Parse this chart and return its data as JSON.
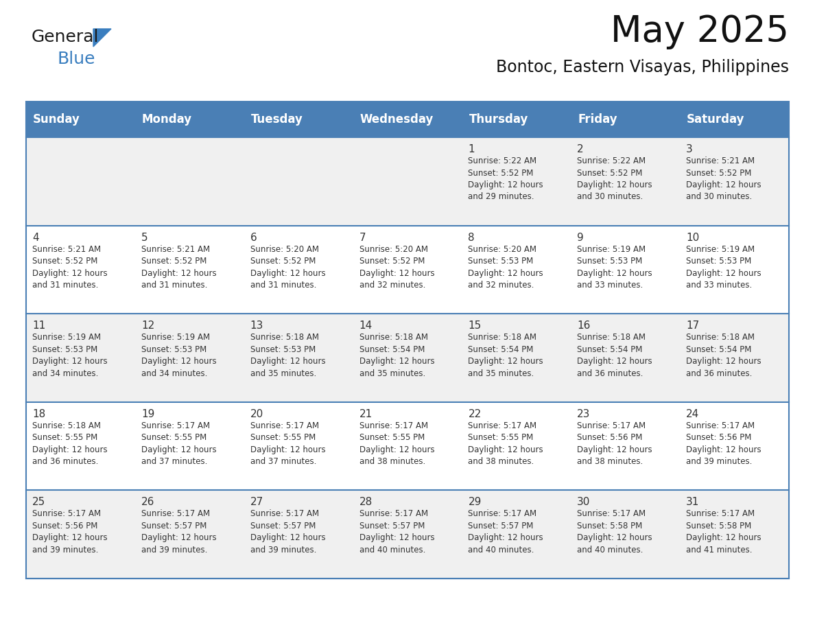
{
  "title": "May 2025",
  "subtitle": "Bontoc, Eastern Visayas, Philippines",
  "days_of_week": [
    "Sunday",
    "Monday",
    "Tuesday",
    "Wednesday",
    "Thursday",
    "Friday",
    "Saturday"
  ],
  "header_bg": "#4a7fb5",
  "header_text": "#ffffff",
  "row_bg_odd": "#f0f0f0",
  "row_bg_even": "#ffffff",
  "line_color": "#4a7fb5",
  "text_color": "#333333",
  "cell_data": [
    [
      "",
      "",
      "",
      "",
      "1\nSunrise: 5:22 AM\nSunset: 5:52 PM\nDaylight: 12 hours\nand 29 minutes.",
      "2\nSunrise: 5:22 AM\nSunset: 5:52 PM\nDaylight: 12 hours\nand 30 minutes.",
      "3\nSunrise: 5:21 AM\nSunset: 5:52 PM\nDaylight: 12 hours\nand 30 minutes."
    ],
    [
      "4\nSunrise: 5:21 AM\nSunset: 5:52 PM\nDaylight: 12 hours\nand 31 minutes.",
      "5\nSunrise: 5:21 AM\nSunset: 5:52 PM\nDaylight: 12 hours\nand 31 minutes.",
      "6\nSunrise: 5:20 AM\nSunset: 5:52 PM\nDaylight: 12 hours\nand 31 minutes.",
      "7\nSunrise: 5:20 AM\nSunset: 5:52 PM\nDaylight: 12 hours\nand 32 minutes.",
      "8\nSunrise: 5:20 AM\nSunset: 5:53 PM\nDaylight: 12 hours\nand 32 minutes.",
      "9\nSunrise: 5:19 AM\nSunset: 5:53 PM\nDaylight: 12 hours\nand 33 minutes.",
      "10\nSunrise: 5:19 AM\nSunset: 5:53 PM\nDaylight: 12 hours\nand 33 minutes."
    ],
    [
      "11\nSunrise: 5:19 AM\nSunset: 5:53 PM\nDaylight: 12 hours\nand 34 minutes.",
      "12\nSunrise: 5:19 AM\nSunset: 5:53 PM\nDaylight: 12 hours\nand 34 minutes.",
      "13\nSunrise: 5:18 AM\nSunset: 5:53 PM\nDaylight: 12 hours\nand 35 minutes.",
      "14\nSunrise: 5:18 AM\nSunset: 5:54 PM\nDaylight: 12 hours\nand 35 minutes.",
      "15\nSunrise: 5:18 AM\nSunset: 5:54 PM\nDaylight: 12 hours\nand 35 minutes.",
      "16\nSunrise: 5:18 AM\nSunset: 5:54 PM\nDaylight: 12 hours\nand 36 minutes.",
      "17\nSunrise: 5:18 AM\nSunset: 5:54 PM\nDaylight: 12 hours\nand 36 minutes."
    ],
    [
      "18\nSunrise: 5:18 AM\nSunset: 5:55 PM\nDaylight: 12 hours\nand 36 minutes.",
      "19\nSunrise: 5:17 AM\nSunset: 5:55 PM\nDaylight: 12 hours\nand 37 minutes.",
      "20\nSunrise: 5:17 AM\nSunset: 5:55 PM\nDaylight: 12 hours\nand 37 minutes.",
      "21\nSunrise: 5:17 AM\nSunset: 5:55 PM\nDaylight: 12 hours\nand 38 minutes.",
      "22\nSunrise: 5:17 AM\nSunset: 5:55 PM\nDaylight: 12 hours\nand 38 minutes.",
      "23\nSunrise: 5:17 AM\nSunset: 5:56 PM\nDaylight: 12 hours\nand 38 minutes.",
      "24\nSunrise: 5:17 AM\nSunset: 5:56 PM\nDaylight: 12 hours\nand 39 minutes."
    ],
    [
      "25\nSunrise: 5:17 AM\nSunset: 5:56 PM\nDaylight: 12 hours\nand 39 minutes.",
      "26\nSunrise: 5:17 AM\nSunset: 5:57 PM\nDaylight: 12 hours\nand 39 minutes.",
      "27\nSunrise: 5:17 AM\nSunset: 5:57 PM\nDaylight: 12 hours\nand 39 minutes.",
      "28\nSunrise: 5:17 AM\nSunset: 5:57 PM\nDaylight: 12 hours\nand 40 minutes.",
      "29\nSunrise: 5:17 AM\nSunset: 5:57 PM\nDaylight: 12 hours\nand 40 minutes.",
      "30\nSunrise: 5:17 AM\nSunset: 5:58 PM\nDaylight: 12 hours\nand 40 minutes.",
      "31\nSunrise: 5:17 AM\nSunset: 5:58 PM\nDaylight: 12 hours\nand 41 minutes."
    ]
  ],
  "logo_text_general": "General",
  "logo_text_blue": "Blue",
  "logo_color_general": "#1a1a1a",
  "logo_color_blue": "#3a7ebf",
  "title_fontsize": 38,
  "subtitle_fontsize": 17,
  "header_fontsize": 12,
  "day_num_fontsize": 11,
  "cell_fontsize": 8.5
}
